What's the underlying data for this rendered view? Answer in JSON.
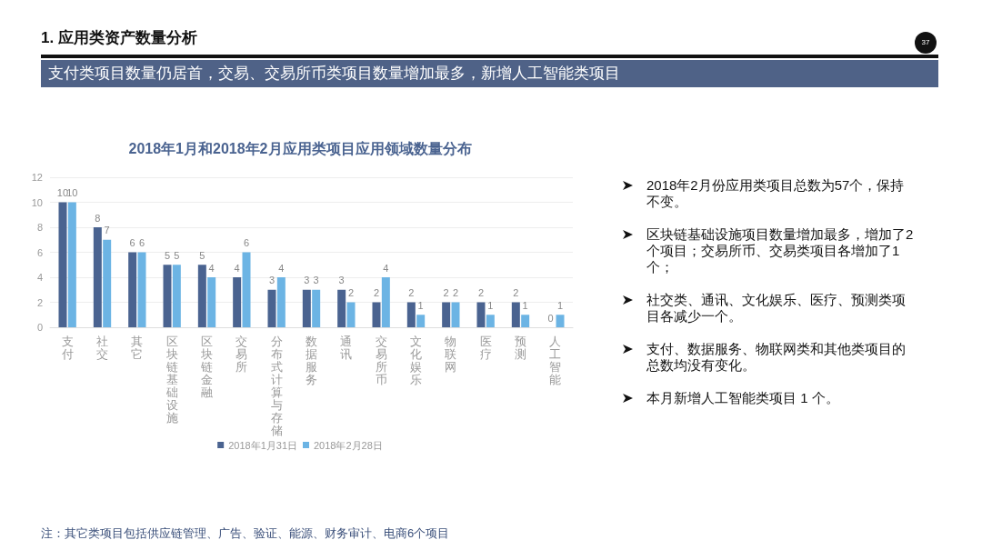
{
  "chart_data": {
    "type": "bar",
    "title": "2018年1月和2018年2月应用类项目应用领域数量分布",
    "categories": [
      "支付",
      "社交",
      "其它",
      "区块链基础设施",
      "区块链金融",
      "交易所",
      "分布式计算与存储",
      "数据服务",
      "通讯",
      "交易所币",
      "文化娱乐",
      "物联网",
      "医疗",
      "预测",
      "人工智能"
    ],
    "series": [
      {
        "name": "2018年1月31日",
        "color": "#4a6390",
        "values": [
          10,
          8,
          6,
          5,
          5,
          4,
          3,
          3,
          3,
          2,
          2,
          2,
          2,
          2,
          0
        ]
      },
      {
        "name": "2018年2月28日",
        "color": "#6cb4e4",
        "values": [
          10,
          7,
          6,
          5,
          4,
          6,
          4,
          3,
          2,
          4,
          1,
          2,
          1,
          1,
          1
        ]
      }
    ],
    "ylim": [
      0,
      12
    ],
    "yticks": [
      0,
      2,
      4,
      6,
      8,
      10,
      12
    ],
    "grid": "y",
    "legend": "bottom",
    "data_labels": true,
    "annotations": [
      "1. 应用类资产数量分析",
      "支付类项目数量仍居首，交易、交易所币类项目数量增加最多，新增人工智能类项目",
      "37",
      "2018年2月份应用类项目总数为57个，保持不变。",
      "区块链基础设施项目数量增加最多，增加了2个项目；交易所币、交易类项目各增加了1个；",
      "社交类、通讯、文化娱乐、医疗、预测类项目各减少一个。",
      "支付、数据服务、物联网类和其他类项目的总数均没有变化。",
      "本月新增人工智能类项目 1 个。",
      "注：其它类项目包括供应链管理、广告、验证、能源、财务审计、电商6个项目"
    ]
  }
}
